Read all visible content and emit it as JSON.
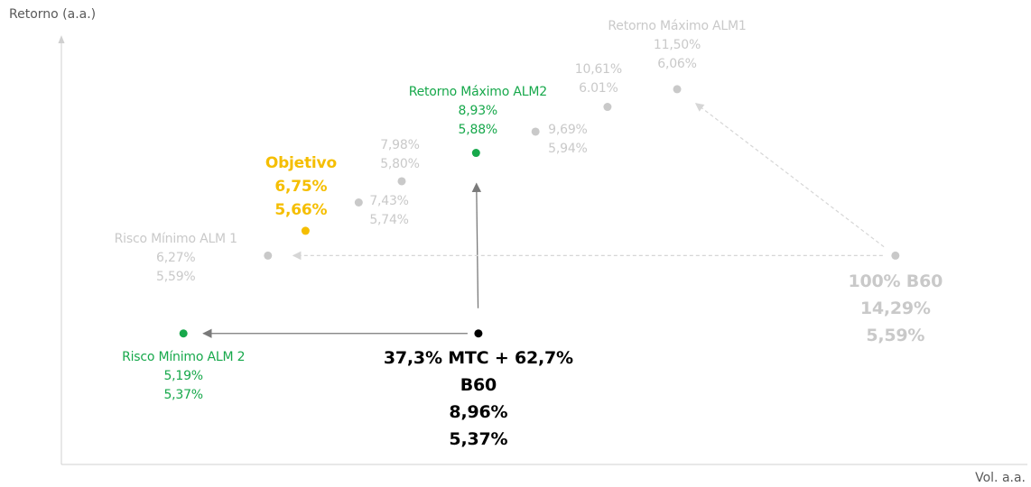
{
  "chart_data": {
    "type": "scatter",
    "xlabel": "Vol. a.a.",
    "ylabel": "Retorno (a.a.)",
    "xlim": [
      3.63,
      16
    ],
    "ylim": [
      5.0,
      6.21
    ],
    "points": [
      {
        "name": "Risco Mínimo ALM 1",
        "color": "#c9c9c9",
        "x": 6.27,
        "y": 5.59,
        "x_label": "6,27%",
        "y_label": "5,59%"
      },
      {
        "name": "Objetivo",
        "color": "#f5be00",
        "x": 6.75,
        "y": 5.66,
        "x_label": "6,75%",
        "y_label": "5,66%"
      },
      {
        "color": "#c9c9c9",
        "x": 7.43,
        "y": 5.74,
        "x_label": "7,43%",
        "y_label": "5,74%"
      },
      {
        "color": "#c9c9c9",
        "x": 7.98,
        "y": 5.8,
        "x_label": "7,98%",
        "y_label": "5,80%"
      },
      {
        "name": "Retorno Máximo ALM2",
        "color": "#17a84b",
        "x": 8.93,
        "y": 5.88,
        "x_label": "8,93%",
        "y_label": "5,88%"
      },
      {
        "color": "#c9c9c9",
        "x": 9.69,
        "y": 5.94,
        "x_label": "9,69%",
        "y_label": "5,94%"
      },
      {
        "color": "#c9c9c9",
        "x": 10.61,
        "y": 6.01,
        "x_label": "10,61%",
        "y_label": "6.01%"
      },
      {
        "name": "Retorno Máximo ALM1",
        "color": "#c9c9c9",
        "x": 11.5,
        "y": 6.06,
        "x_label": "11,50%",
        "y_label": "6,06%"
      },
      {
        "name": "100% B60",
        "color": "#c9c9c9",
        "x": 14.29,
        "y": 5.59,
        "x_label": "14,29%",
        "y_label": "5,59%"
      },
      {
        "name": "37,3% MTC + 62,7% B60",
        "color": "#000000",
        "x": 8.96,
        "y": 5.37,
        "x_label": "8,96%",
        "y_label": "5,37%"
      },
      {
        "name": "Risco Mínimo ALM 2",
        "color": "#17a84b",
        "x": 5.19,
        "y": 5.37,
        "x_label": "5,19%",
        "y_label": "5,37%"
      }
    ]
  }
}
